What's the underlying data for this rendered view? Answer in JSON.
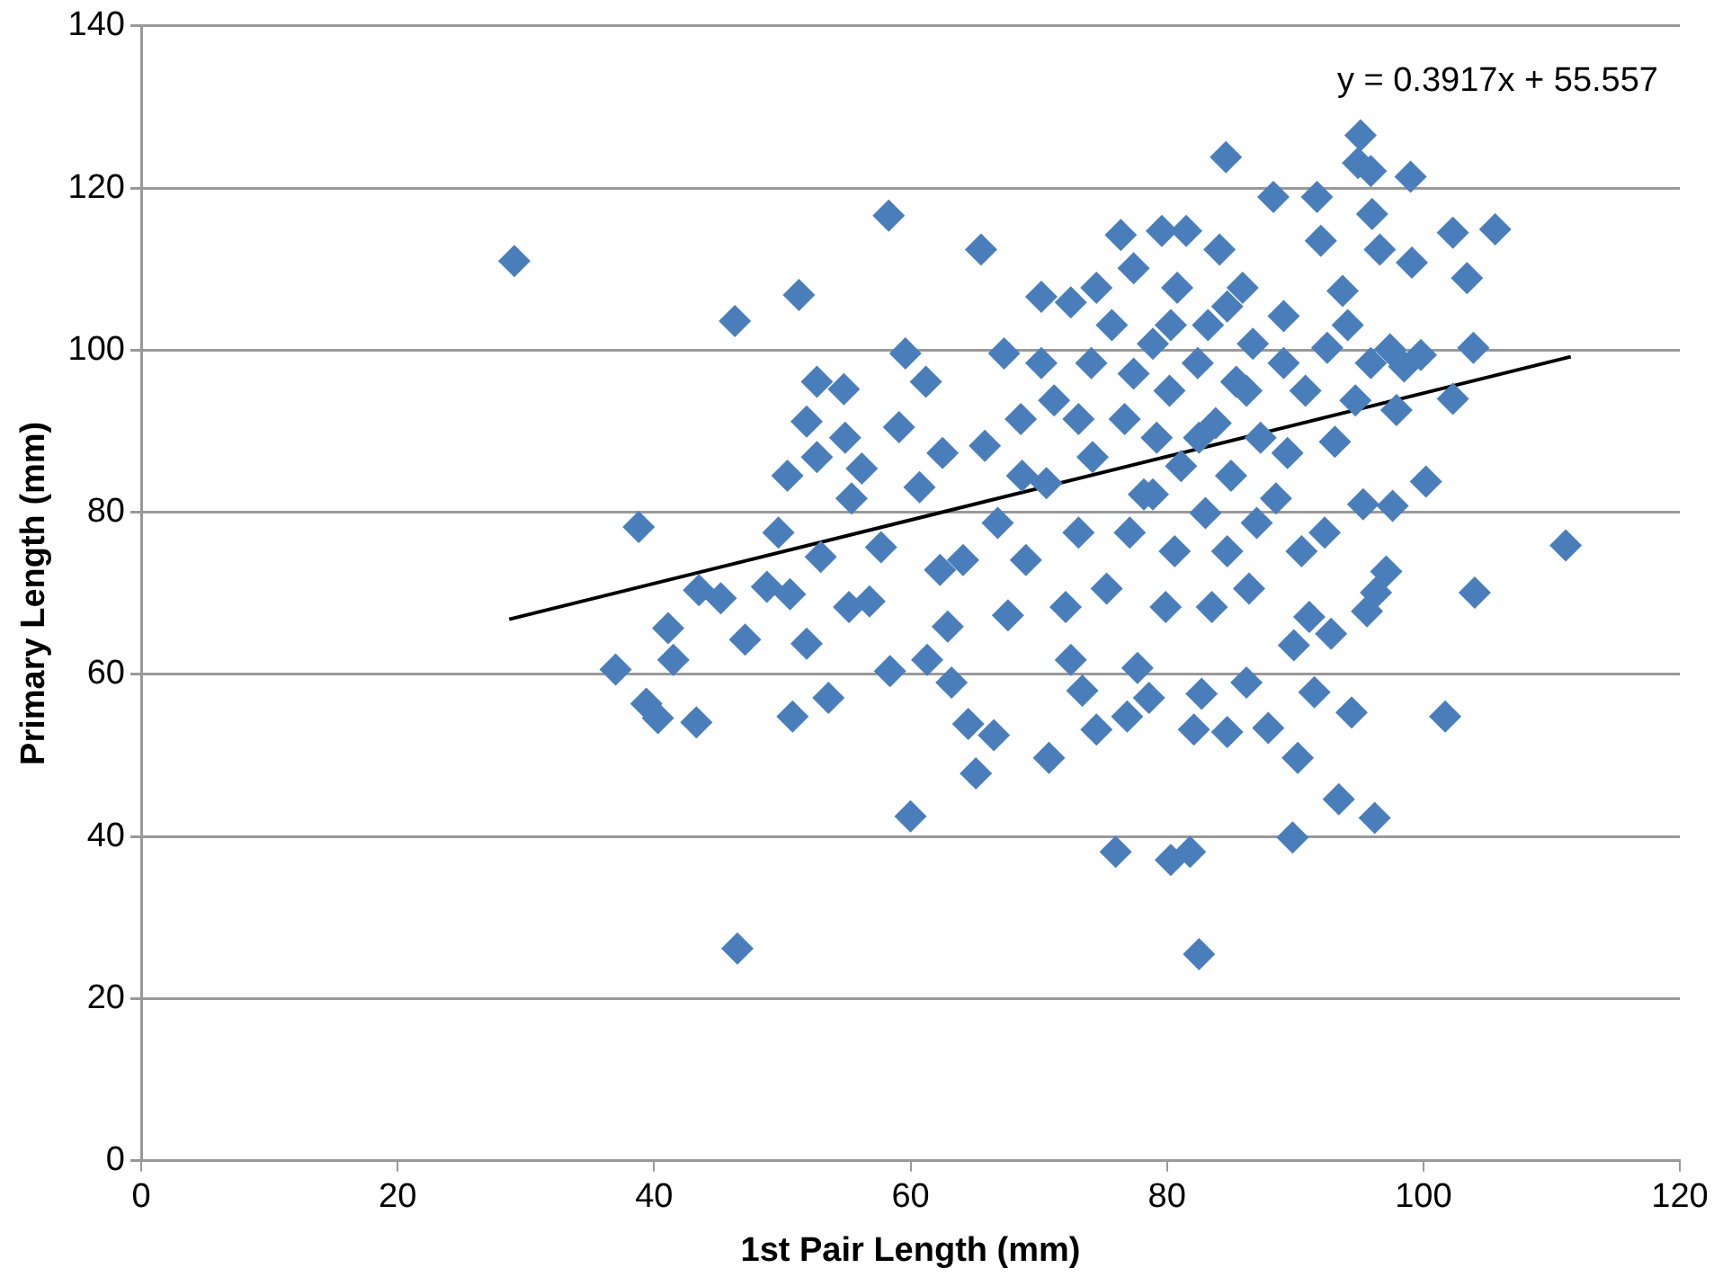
{
  "chart_data": {
    "type": "scatter",
    "xlabel": "1st Pair Length (mm)",
    "ylabel": "Primary Length (mm)",
    "xlim": [
      0,
      120
    ],
    "xticks": [
      0,
      20,
      40,
      60,
      80,
      100,
      120
    ],
    "ylim": [
      0,
      140
    ],
    "yticks": [
      0,
      20,
      40,
      60,
      80,
      100,
      120,
      140
    ],
    "grid": "y",
    "legend": false,
    "annotations": [
      "y = 0.3917x + 55.557"
    ],
    "series": [
      {
        "color": "#4a7ebb",
        "marker": "diamond",
        "x": [
          29.1,
          38.8,
          37.0,
          39.4,
          40.3,
          41.1,
          41.5,
          43.3,
          43.5,
          45.2,
          46.3,
          46.5,
          47.1,
          48.8,
          49.7,
          50.4,
          50.8,
          51.3,
          50.6,
          51.9,
          51.9,
          52.7,
          52.7,
          53.0,
          53.6,
          54.8,
          54.9,
          55.2,
          55.4,
          56.2,
          56.8,
          58.3,
          57.7,
          58.4,
          59.1,
          59.6,
          60.0,
          60.7,
          61.2,
          61.3,
          62.3,
          62.5,
          62.9,
          63.2,
          64.1,
          64.5,
          65.1,
          65.5,
          65.8,
          66.5,
          66.8,
          67.3,
          67.6,
          68.6,
          69.0,
          70.2,
          70.8,
          70.6,
          71.2,
          72.1,
          72.5,
          72.5,
          73.1,
          73.4,
          74.1,
          74.2,
          74.5,
          75.3,
          75.7,
          76.0,
          76.4,
          76.7,
          76.9,
          77.1,
          77.4,
          77.4,
          77.7,
          78.2,
          78.6,
          78.9,
          79.2,
          79.6,
          79.9,
          80.2,
          80.3,
          80.6,
          80.8,
          81.1,
          81.5,
          81.8,
          82.1,
          82.4,
          82.5,
          82.7,
          83.0,
          83.2,
          83.5,
          83.8,
          84.1,
          84.6,
          84.7,
          84.7,
          85.0,
          85.4,
          85.9,
          86.2,
          86.4,
          86.7,
          87.0,
          87.3,
          87.9,
          88.3,
          88.5,
          89.1,
          89.4,
          89.8,
          89.9,
          90.2,
          90.5,
          90.8,
          91.1,
          91.5,
          91.7,
          92.0,
          92.3,
          92.5,
          92.8,
          93.1,
          93.4,
          93.7,
          94.1,
          94.4,
          94.7,
          94.9,
          95.1,
          95.3,
          95.6,
          95.9,
          95.9,
          96.0,
          96.2,
          96.3,
          96.6,
          97.1,
          97.4,
          97.6,
          97.9,
          98.5,
          99.0,
          99.1,
          99.8,
          100.2,
          101.7,
          102.3,
          102.3,
          103.4,
          103.9,
          104.0,
          105.6,
          111.1,
          86.2,
          80.3,
          74.5,
          73.1,
          70.2,
          82.5,
          89.1,
          84.7,
          78.9,
          68.7
        ],
        "values": [
          111.0,
          78.2,
          60.6,
          56.4,
          54.6,
          65.7,
          61.8,
          54.1,
          70.4,
          69.4,
          103.6,
          26.2,
          64.3,
          70.8,
          77.5,
          84.5,
          54.8,
          106.8,
          69.9,
          91.2,
          63.8,
          96.1,
          86.8,
          74.5,
          57.1,
          95.2,
          89.2,
          68.3,
          81.7,
          85.4,
          69.0,
          116.6,
          75.7,
          60.4,
          90.5,
          99.6,
          42.5,
          83.1,
          96.1,
          61.8,
          72.9,
          87.3,
          65.9,
          59.0,
          74.1,
          53.9,
          47.8,
          112.4,
          88.2,
          52.5,
          78.7,
          99.6,
          67.3,
          91.5,
          74.1,
          106.6,
          49.7,
          83.6,
          93.8,
          68.3,
          105.9,
          61.8,
          77.5,
          58.0,
          98.4,
          86.8,
          53.2,
          70.6,
          103.1,
          38.1,
          114.2,
          91.5,
          54.8,
          77.5,
          110.1,
          97.1,
          60.8,
          82.2,
          57.1,
          100.8,
          89.2,
          114.7,
          68.3,
          95.0,
          37.1,
          75.2,
          107.7,
          85.7,
          114.7,
          38.1,
          53.2,
          98.4,
          25.5,
          57.6,
          79.9,
          103.1,
          68.3,
          91.0,
          112.4,
          123.8,
          52.9,
          75.2,
          84.5,
          96.1,
          107.7,
          59.0,
          70.6,
          100.8,
          78.7,
          89.2,
          53.4,
          118.9,
          81.7,
          104.2,
          87.3,
          39.9,
          63.6,
          49.7,
          75.2,
          95.0,
          67.1,
          57.8,
          118.9,
          113.5,
          77.5,
          100.3,
          65.0,
          88.7,
          44.6,
          107.3,
          103.1,
          55.3,
          93.8,
          123.1,
          126.5,
          81.0,
          67.8,
          122.1,
          98.4,
          116.8,
          42.3,
          70.1,
          112.4,
          72.7,
          100.1,
          80.8,
          92.6,
          98.0,
          121.4,
          110.8,
          99.4,
          83.8,
          54.8,
          114.5,
          94.0,
          108.9,
          100.3,
          70.1,
          114.9,
          75.9,
          95.0,
          103.1,
          107.7,
          91.5,
          98.4,
          89.2,
          98.4,
          105.4,
          82.2,
          84.5
        ]
      },
      {
        "type": "line",
        "color": "#000000",
        "marker": "none",
        "line_style": "solid",
        "x": [
          28.7,
          111.5
        ],
        "values": [
          66.8,
          99.2
        ]
      }
    ]
  }
}
